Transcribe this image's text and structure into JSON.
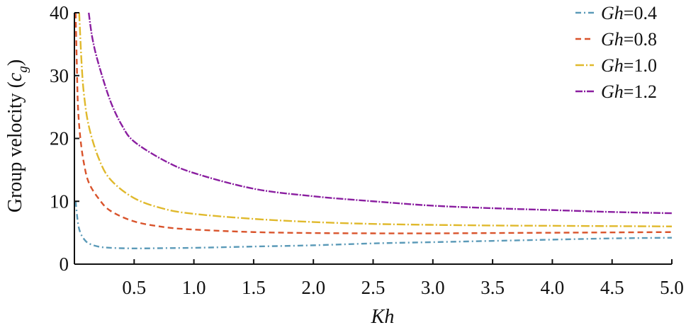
{
  "chart_data": {
    "type": "line",
    "title": "",
    "xlabel": "Kh",
    "ylabel_prefix": "Group velocity (",
    "ylabel_var": "c",
    "ylabel_sub": "g",
    "ylabel_suffix": ")",
    "xlim": [
      0,
      5.0
    ],
    "ylim": [
      0,
      40
    ],
    "xticks": [
      0.5,
      1.0,
      1.5,
      2.0,
      2.5,
      3.0,
      3.5,
      4.0,
      4.5,
      5.0
    ],
    "xtick_labels": [
      "0.5",
      "1.0",
      "1.5",
      "2.0",
      "2.5",
      "3.0",
      "3.5",
      "4.0",
      "4.5",
      "5.0"
    ],
    "yticks": [
      0,
      10,
      20,
      30,
      40
    ],
    "ytick_labels": [
      "0",
      "10",
      "20",
      "30",
      "40"
    ],
    "grid": false,
    "legend_position": "top-right",
    "series": [
      {
        "name": "Gh=0.4",
        "legend_var": "Gh",
        "legend_value": "=0.4",
        "color": "#5b9ab8",
        "dash": "8,4,2,4",
        "x": [
          0.01,
          0.03,
          0.05,
          0.08,
          0.12,
          0.2,
          0.3,
          0.5,
          0.75,
          1.0,
          1.5,
          2.0,
          2.5,
          3.0,
          3.5,
          4.0,
          4.5,
          5.0
        ],
        "y": [
          10.0,
          6.5,
          5.0,
          4.0,
          3.3,
          2.8,
          2.6,
          2.5,
          2.55,
          2.6,
          2.8,
          3.0,
          3.3,
          3.5,
          3.7,
          3.9,
          4.1,
          4.2
        ]
      },
      {
        "name": "Gh=0.8",
        "legend_var": "Gh",
        "legend_value": "=0.8",
        "color": "#d9532b",
        "dash": "8,5",
        "x": [
          0.01,
          0.02,
          0.03,
          0.05,
          0.08,
          0.12,
          0.2,
          0.3,
          0.5,
          0.75,
          1.0,
          1.5,
          2.0,
          2.5,
          3.0,
          3.5,
          4.0,
          4.5,
          5.0
        ],
        "y": [
          40.0,
          32.0,
          25.0,
          20.0,
          16.0,
          13.0,
          10.5,
          8.5,
          6.8,
          5.9,
          5.5,
          5.1,
          4.95,
          4.9,
          4.9,
          4.95,
          5.0,
          5.05,
          5.1
        ]
      },
      {
        "name": "Gh=1.0",
        "legend_var": "Gh",
        "legend_value": "=1.0",
        "color": "#e0b92c",
        "dash": "12,3,2,3",
        "x": [
          0.04,
          0.06,
          0.08,
          0.12,
          0.2,
          0.3,
          0.5,
          0.75,
          1.0,
          1.5,
          2.0,
          2.5,
          3.0,
          3.5,
          4.0,
          4.5,
          5.0
        ],
        "y": [
          40.0,
          32.0,
          27.0,
          22.0,
          17.0,
          13.5,
          10.5,
          8.8,
          8.0,
          7.2,
          6.7,
          6.4,
          6.25,
          6.15,
          6.1,
          6.05,
          6.0
        ]
      },
      {
        "name": "Gh=1.2",
        "legend_var": "Gh",
        "legend_value": "=1.2",
        "color": "#8a1ea0",
        "dash": "10,2,2,2",
        "x": [
          0.12,
          0.15,
          0.2,
          0.3,
          0.4,
          0.5,
          0.75,
          1.0,
          1.5,
          2.0,
          2.5,
          3.0,
          3.5,
          4.0,
          4.5,
          5.0
        ],
        "y": [
          40.0,
          36.0,
          32.0,
          26.0,
          22.0,
          19.5,
          16.5,
          14.5,
          12.0,
          10.8,
          10.0,
          9.3,
          8.9,
          8.6,
          8.3,
          8.1
        ]
      }
    ]
  }
}
